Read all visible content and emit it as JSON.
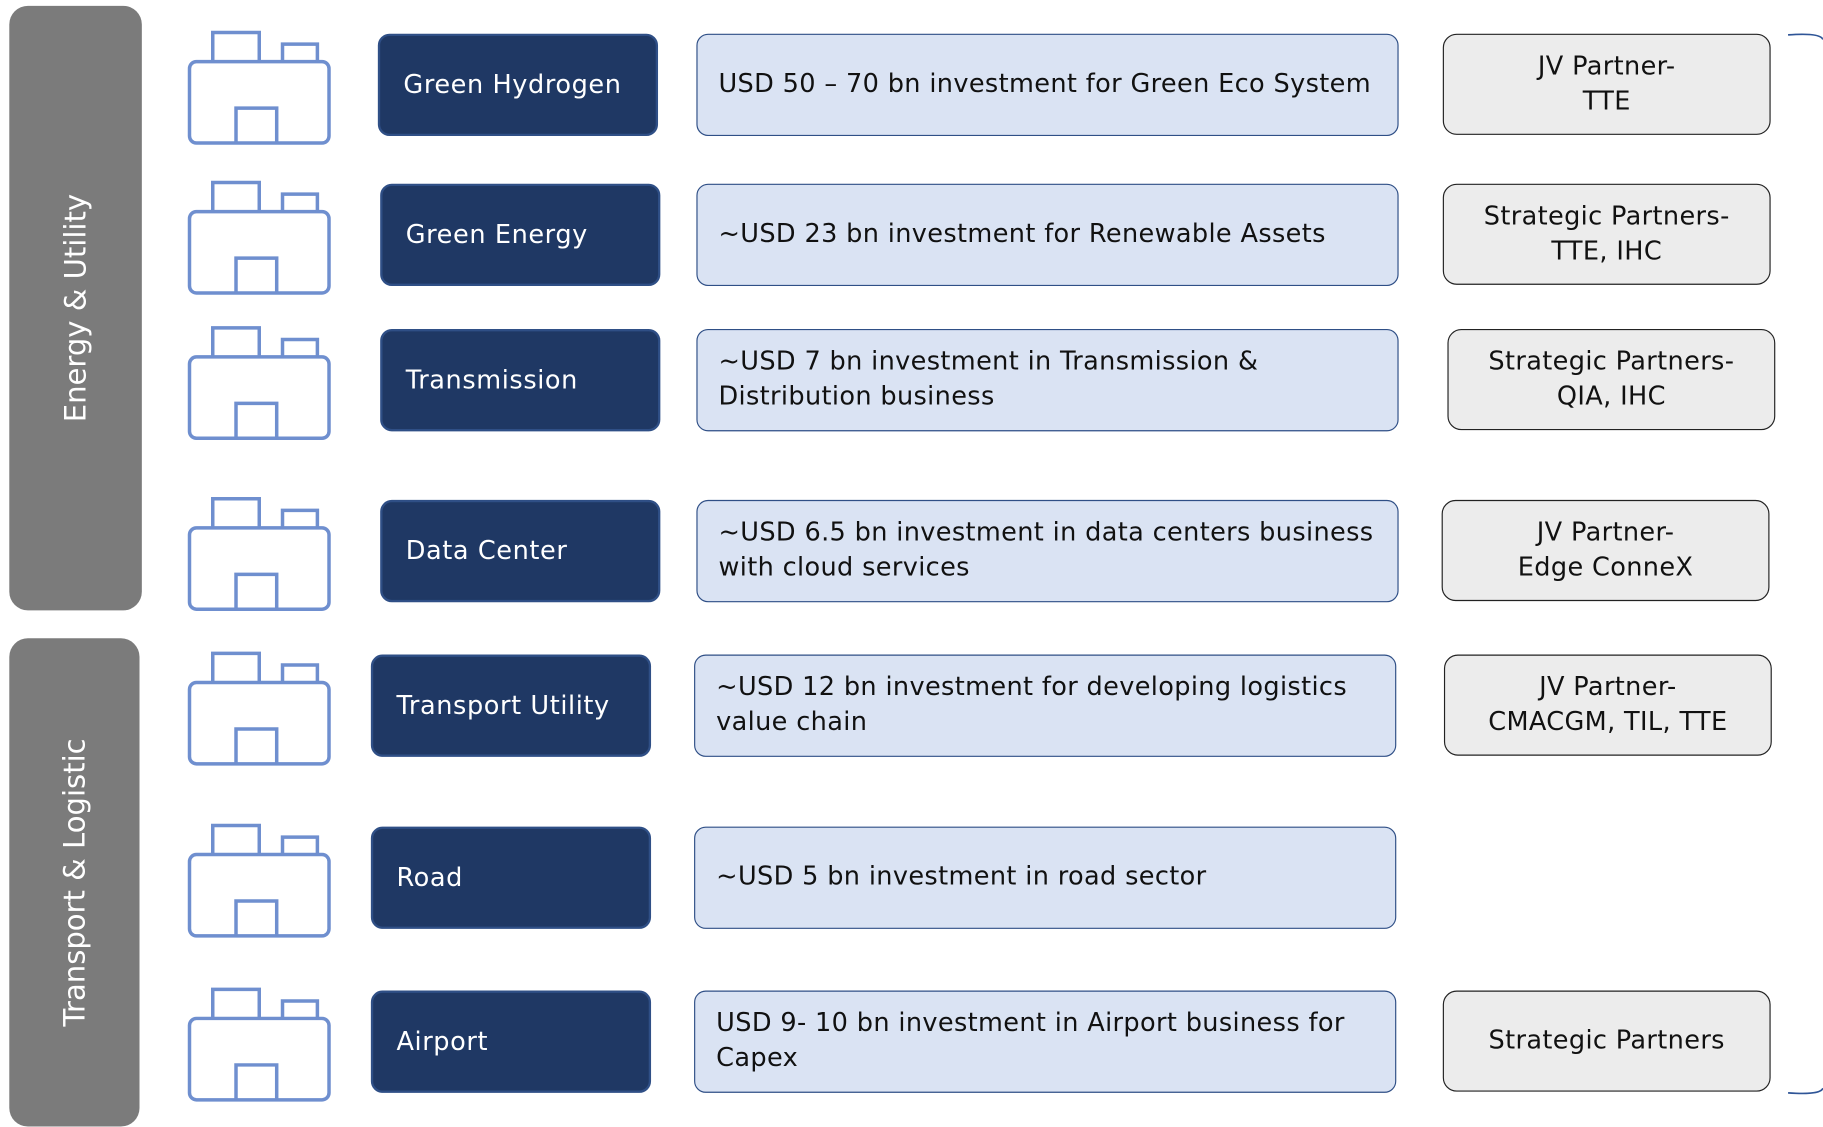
{
  "groups": [
    {
      "label": "Energy & Utility"
    },
    {
      "label": "Transport & Logistic"
    }
  ],
  "rows": [
    {
      "name": "Green Hydrogen",
      "investment": "USD 50 – 70 bn investment for Green Eco System",
      "partner": "JV Partner-\nTTE"
    },
    {
      "name": "Green Energy",
      "investment": "~USD 23 bn investment for Renewable Assets",
      "partner": "Strategic Partners-\nTTE, IHC"
    },
    {
      "name": "Transmission",
      "investment": "~USD 7 bn investment in Transmission & Distribution business",
      "partner": "Strategic Partners-\nQIA, IHC"
    },
    {
      "name": "Data Center",
      "investment": "~USD 6.5 bn investment in data centers business with cloud services",
      "partner": "JV Partner-\nEdge ConneX"
    },
    {
      "name": "Transport Utility",
      "investment": "~USD 12 bn investment for developing logistics value chain",
      "partner": "JV Partner-\nCMACGM, TIL, TTE"
    },
    {
      "name": "Road",
      "investment": "~USD 5 bn investment in road sector"
    },
    {
      "name": "Airport",
      "investment": "USD 9- 10 bn investment in Airport business for Capex",
      "partner": "Strategic Partners"
    }
  ]
}
